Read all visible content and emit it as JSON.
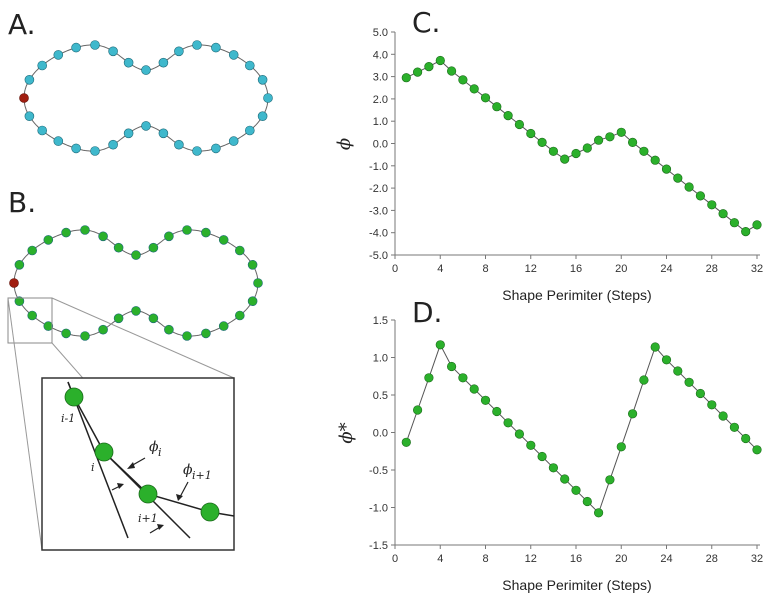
{
  "panels": {
    "a": "A.",
    "b": "B.",
    "c": "C.",
    "d": "D."
  },
  "inset": {
    "labels": [
      "i-1",
      "i",
      "i+1"
    ],
    "phi_i": "ϕ",
    "phi_i_sub": "i",
    "phi_i1": "ϕ",
    "phi_i1_sub": "i+1"
  },
  "colors": {
    "bead_cyan": "#3fb8cc",
    "bead_green": "#2bb02b",
    "bead_red": "#a01e10",
    "line": "#555555"
  },
  "chart_data": [
    {
      "type": "line",
      "panel": "C.",
      "xlabel": "Shape Perimiter (Steps)",
      "ylabel": "ϕ",
      "xlim": [
        0,
        32
      ],
      "ylim": [
        -5.0,
        5.0
      ],
      "xticks": [
        "0",
        "4",
        "8",
        "12",
        "16",
        "20",
        "24",
        "28",
        "32"
      ],
      "yticks": [
        "5.0",
        "4.0",
        "3.0",
        "2.0",
        "1.0",
        "0.0",
        "-1.0",
        "-2.0",
        "-3.0",
        "-4.0",
        "-5.0"
      ],
      "series": [
        {
          "x": [
            1,
            2,
            3,
            4,
            5,
            6,
            7,
            8,
            9,
            10,
            11,
            12,
            13,
            14,
            15,
            16,
            17,
            18,
            19,
            20,
            21,
            22,
            23,
            24,
            25,
            26,
            27,
            28,
            29,
            30,
            31,
            32
          ],
          "y": [
            2.95,
            3.2,
            3.45,
            3.72,
            3.25,
            2.85,
            2.45,
            2.05,
            1.65,
            1.25,
            0.85,
            0.45,
            0.05,
            -0.35,
            -0.7,
            -0.45,
            -0.2,
            0.15,
            0.3,
            0.5,
            0.05,
            -0.35,
            -0.75,
            -1.15,
            -1.55,
            -1.95,
            -2.35,
            -2.75,
            -3.15,
            -3.55,
            -3.95,
            -3.65
          ]
        }
      ]
    },
    {
      "type": "line",
      "panel": "D.",
      "xlabel": "Shape Perimiter (Steps)",
      "ylabel": "ϕ*",
      "xlim": [
        0,
        32
      ],
      "ylim": [
        -1.5,
        1.5
      ],
      "xticks": [
        "0",
        "4",
        "8",
        "12",
        "16",
        "20",
        "24",
        "28",
        "32"
      ],
      "yticks": [
        "1.5",
        "1.0",
        "0.5",
        "0.0",
        "-0.5",
        "-1.0",
        "-1.5"
      ],
      "series": [
        {
          "x": [
            1,
            2,
            3,
            4,
            5,
            6,
            7,
            8,
            9,
            10,
            11,
            12,
            13,
            14,
            15,
            16,
            17,
            18,
            19,
            20,
            21,
            22,
            23,
            24,
            25,
            26,
            27,
            28,
            29,
            30,
            31,
            32
          ],
          "y": [
            -0.13,
            0.3,
            0.73,
            1.17,
            0.88,
            0.73,
            0.58,
            0.43,
            0.28,
            0.13,
            -0.02,
            -0.17,
            -0.32,
            -0.47,
            -0.62,
            -0.77,
            -0.92,
            -1.07,
            -0.63,
            -0.19,
            0.25,
            0.7,
            1.14,
            0.97,
            0.82,
            0.67,
            0.52,
            0.37,
            0.22,
            0.07,
            -0.08,
            -0.23
          ]
        }
      ]
    }
  ]
}
